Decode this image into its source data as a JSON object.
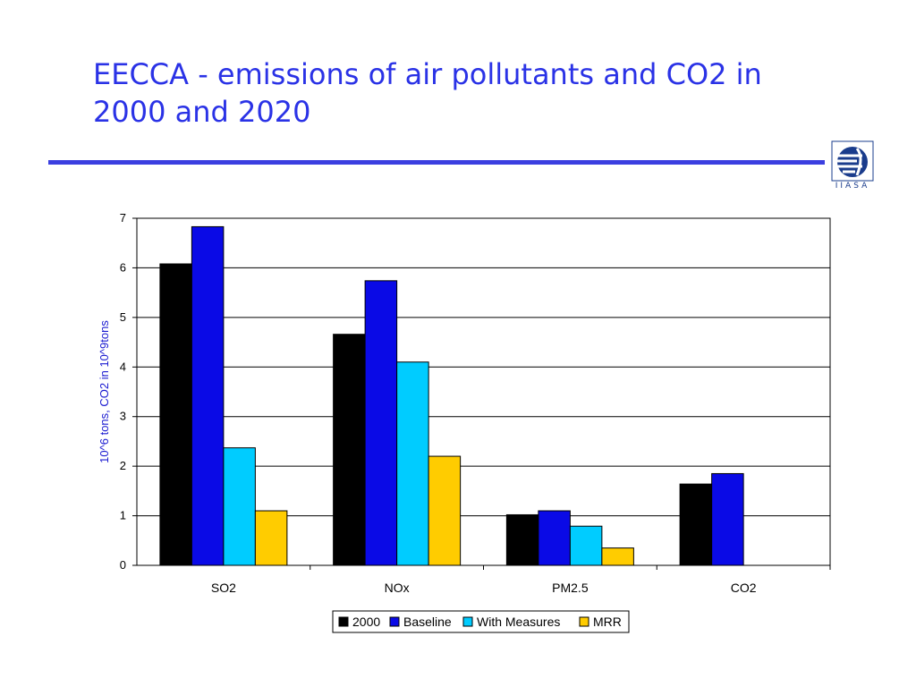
{
  "slide": {
    "title": "EECCA - emissions of air pollutants and CO2 in 2000 and 2020",
    "logo_text": "IIASA",
    "title_color": "#2a32e6"
  },
  "chart_data": {
    "type": "bar",
    "categories": [
      "SO2",
      "NOx",
      "PM2.5",
      "CO2"
    ],
    "series": [
      {
        "name": "2000",
        "color": "#000000",
        "values": [
          6.08,
          4.66,
          1.02,
          1.64
        ]
      },
      {
        "name": "Baseline",
        "color": "#0a0ae6",
        "values": [
          6.83,
          5.74,
          1.1,
          1.85
        ]
      },
      {
        "name": "With Measures",
        "color": "#00ccff",
        "values": [
          2.37,
          4.1,
          0.79,
          null
        ]
      },
      {
        "name": "MRR",
        "color": "#ffcc00",
        "values": [
          1.1,
          2.2,
          0.35,
          null
        ]
      }
    ],
    "title": "",
    "xlabel": "",
    "ylabel": "10^6 tons, CO2 in 10^9tons",
    "ylim": [
      0,
      7
    ],
    "yticks": [
      0,
      1,
      2,
      3,
      4,
      5,
      6,
      7
    ],
    "grid": true,
    "legend_position": "bottom"
  }
}
